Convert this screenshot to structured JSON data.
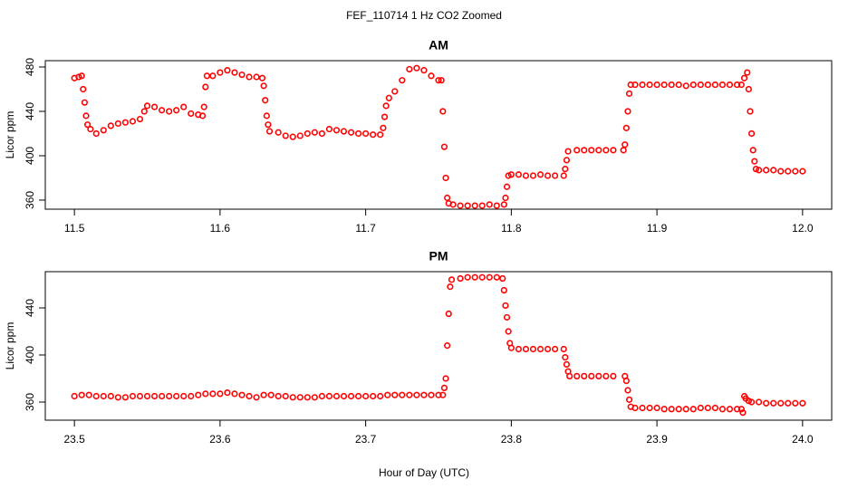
{
  "title": "FEF_110714  1 Hz CO2 Zoomed",
  "xlabel": "Hour of Day (UTC)",
  "chart_data": [
    {
      "type": "scatter",
      "title": "AM",
      "y_label": "Licor ppm",
      "color": "#ff0000",
      "xlim": [
        11.48,
        12.02
      ],
      "ylim": [
        351.8,
        485.7
      ],
      "xticks": [
        11.5,
        11.6,
        11.7,
        11.8,
        11.9,
        {
          "value": 12.0,
          "label": "12.0"
        }
      ],
      "yticks": [
        360,
        400,
        440,
        480
      ],
      "x": [
        11.5,
        11.503,
        11.505,
        11.506,
        11.507,
        11.508,
        11.509,
        11.511,
        11.515,
        11.52,
        11.525,
        11.53,
        11.535,
        11.54,
        11.545,
        11.548,
        11.55,
        11.555,
        11.56,
        11.565,
        11.57,
        11.575,
        11.58,
        11.585,
        11.588,
        11.589,
        11.59,
        11.591,
        11.595,
        11.6,
        11.605,
        11.61,
        11.615,
        11.62,
        11.625,
        11.629,
        11.63,
        11.631,
        11.632,
        11.633,
        11.634,
        11.64,
        11.645,
        11.65,
        11.655,
        11.66,
        11.665,
        11.67,
        11.675,
        11.68,
        11.685,
        11.69,
        11.695,
        11.7,
        11.705,
        11.71,
        11.712,
        11.713,
        11.714,
        11.716,
        11.72,
        11.725,
        11.73,
        11.735,
        11.74,
        11.745,
        11.75,
        11.752,
        11.753,
        11.754,
        11.755,
        11.756,
        11.757,
        11.76,
        11.765,
        11.77,
        11.775,
        11.78,
        11.785,
        11.79,
        11.795,
        11.796,
        11.797,
        11.798,
        11.8,
        11.805,
        11.81,
        11.815,
        11.82,
        11.825,
        11.83,
        11.836,
        11.837,
        11.838,
        11.839,
        11.845,
        11.85,
        11.855,
        11.86,
        11.865,
        11.87,
        11.877,
        11.878,
        11.879,
        11.88,
        11.881,
        11.882,
        11.885,
        11.89,
        11.895,
        11.9,
        11.905,
        11.91,
        11.915,
        11.92,
        11.925,
        11.93,
        11.935,
        11.94,
        11.945,
        11.95,
        11.955,
        11.958,
        11.96,
        11.962,
        11.963,
        11.964,
        11.965,
        11.966,
        11.967,
        11.968,
        11.97,
        11.975,
        11.98,
        11.985,
        11.99,
        11.995,
        12.0
      ],
      "values": [
        470,
        471,
        472,
        460,
        448,
        436,
        428,
        424,
        420,
        423,
        427,
        429,
        430,
        431,
        433,
        440,
        445,
        444,
        441,
        440,
        441,
        444,
        438,
        437,
        436,
        444,
        462,
        472,
        472,
        475,
        477,
        475,
        473,
        471,
        471,
        470,
        463,
        450,
        436,
        428,
        422,
        421,
        418,
        417,
        418,
        420,
        421,
        420,
        424,
        423,
        422,
        421,
        420,
        420,
        419,
        419,
        425,
        435,
        445,
        452,
        458,
        468,
        478,
        479,
        477,
        472,
        468,
        468,
        440,
        408,
        380,
        362,
        357,
        356,
        355,
        355,
        355,
        355,
        356,
        355,
        356,
        362,
        372,
        382,
        383,
        383,
        382,
        382,
        383,
        382,
        382,
        382,
        388,
        396,
        404,
        405,
        405,
        405,
        405,
        405,
        405,
        405,
        410,
        425,
        440,
        456,
        464,
        464,
        464,
        464,
        464,
        464,
        464,
        464,
        463,
        464,
        464,
        464,
        464,
        464,
        464,
        464,
        464,
        470,
        475,
        460,
        440,
        420,
        405,
        395,
        388,
        387,
        387,
        387,
        386,
        386,
        386,
        386
      ]
    },
    {
      "type": "scatter",
      "title": "PM",
      "y_label": "Licor ppm",
      "color": "#ff0000",
      "xlim": [
        23.48,
        24.02
      ],
      "ylim": [
        344.6,
        470.8
      ],
      "xticks": [
        23.5,
        23.6,
        23.7,
        23.8,
        23.9,
        {
          "value": 24.0,
          "label": "24.0"
        }
      ],
      "yticks": [
        360,
        400,
        440
      ],
      "x": [
        23.5,
        23.505,
        23.51,
        23.515,
        23.52,
        23.525,
        23.53,
        23.535,
        23.54,
        23.545,
        23.55,
        23.555,
        23.56,
        23.565,
        23.57,
        23.575,
        23.58,
        23.585,
        23.59,
        23.595,
        23.6,
        23.605,
        23.61,
        23.615,
        23.62,
        23.625,
        23.63,
        23.635,
        23.64,
        23.645,
        23.65,
        23.655,
        23.66,
        23.665,
        23.67,
        23.675,
        23.68,
        23.685,
        23.69,
        23.695,
        23.7,
        23.705,
        23.71,
        23.715,
        23.72,
        23.725,
        23.73,
        23.735,
        23.74,
        23.745,
        23.75,
        23.753,
        23.754,
        23.755,
        23.756,
        23.757,
        23.758,
        23.759,
        23.765,
        23.77,
        23.775,
        23.78,
        23.785,
        23.79,
        23.794,
        23.795,
        23.796,
        23.797,
        23.798,
        23.799,
        23.8,
        23.805,
        23.81,
        23.815,
        23.82,
        23.825,
        23.83,
        23.836,
        23.837,
        23.838,
        23.839,
        23.84,
        23.845,
        23.85,
        23.855,
        23.86,
        23.865,
        23.87,
        23.878,
        23.879,
        23.88,
        23.881,
        23.882,
        23.885,
        23.89,
        23.895,
        23.9,
        23.905,
        23.91,
        23.915,
        23.92,
        23.925,
        23.93,
        23.935,
        23.94,
        23.945,
        23.95,
        23.955,
        23.958,
        23.959,
        23.96,
        23.961,
        23.963,
        23.965,
        23.97,
        23.975,
        23.98,
        23.985,
        23.99,
        23.995,
        24.0
      ],
      "values": [
        365,
        366,
        366,
        365,
        365,
        365,
        364,
        364,
        365,
        365,
        365,
        365,
        365,
        365,
        365,
        365,
        365,
        366,
        367,
        367,
        367,
        368,
        367,
        366,
        365,
        364,
        366,
        366,
        365,
        365,
        364,
        364,
        364,
        364,
        365,
        365,
        365,
        365,
        365,
        365,
        365,
        365,
        365,
        366,
        366,
        366,
        366,
        366,
        366,
        366,
        366,
        366,
        372,
        380,
        408,
        435,
        458,
        464,
        465,
        466,
        466,
        466,
        466,
        466,
        465,
        455,
        442,
        432,
        420,
        410,
        406,
        405,
        405,
        405,
        405,
        405,
        405,
        405,
        398,
        392,
        386,
        382,
        382,
        382,
        382,
        382,
        382,
        382,
        382,
        378,
        370,
        362,
        356,
        355,
        355,
        355,
        355,
        354,
        354,
        354,
        354,
        354,
        355,
        355,
        355,
        354,
        354,
        354,
        354,
        351,
        365,
        363,
        361,
        360,
        360,
        359,
        359,
        359,
        359,
        359,
        359
      ]
    }
  ]
}
